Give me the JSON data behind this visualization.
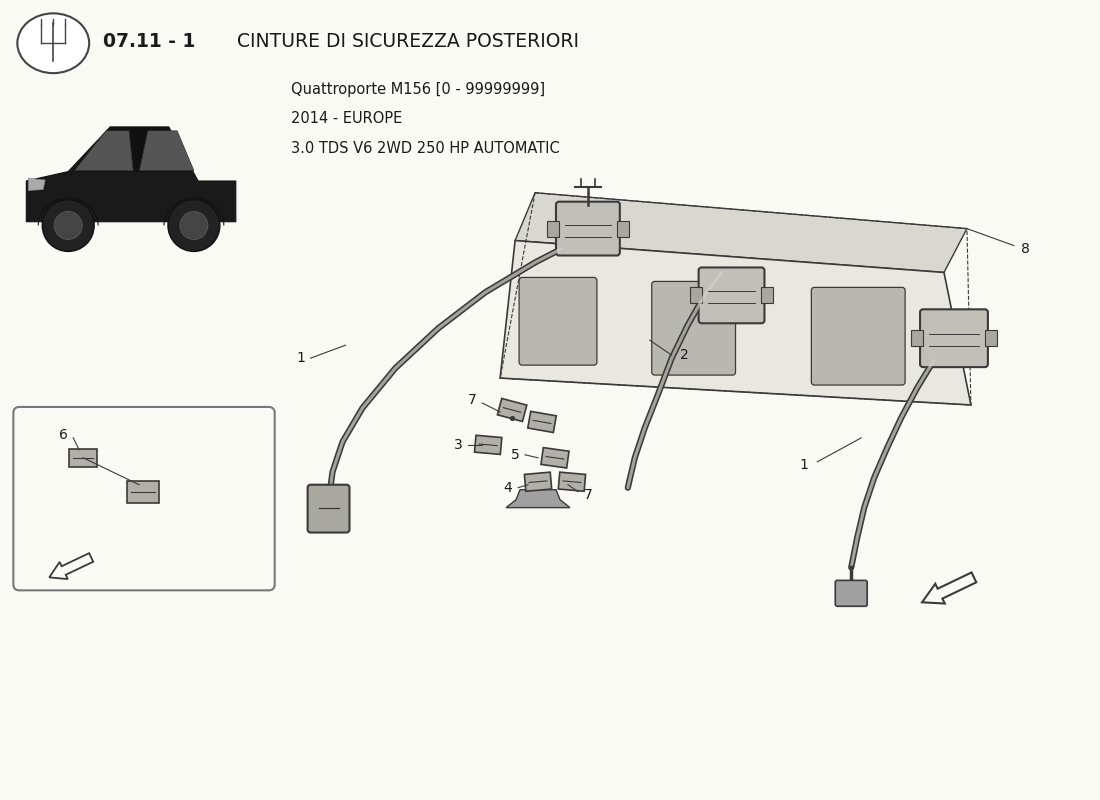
{
  "title_bold": "07.11 - 1",
  "title_regular": " CINTURE DI SICUREZZA POSTERIORI",
  "subtitle_line1": "Quattroporte M156 [0 - 99999999]",
  "subtitle_line2": "2014 - EUROPE",
  "subtitle_line3": "3.0 TDS V6 2WD 250 HP AUTOMATIC",
  "bg_color": "#FAFAF5",
  "text_color": "#1a1a1a",
  "diagram_color": "#2a2a2a",
  "fig_width": 11.0,
  "fig_height": 8.0,
  "logo_color": "#333333",
  "line_gray": "#3a3a3a",
  "fill_light": "#e0e0d8",
  "fill_mid": "#c8c8c0",
  "fill_dark": "#a0a0a0"
}
